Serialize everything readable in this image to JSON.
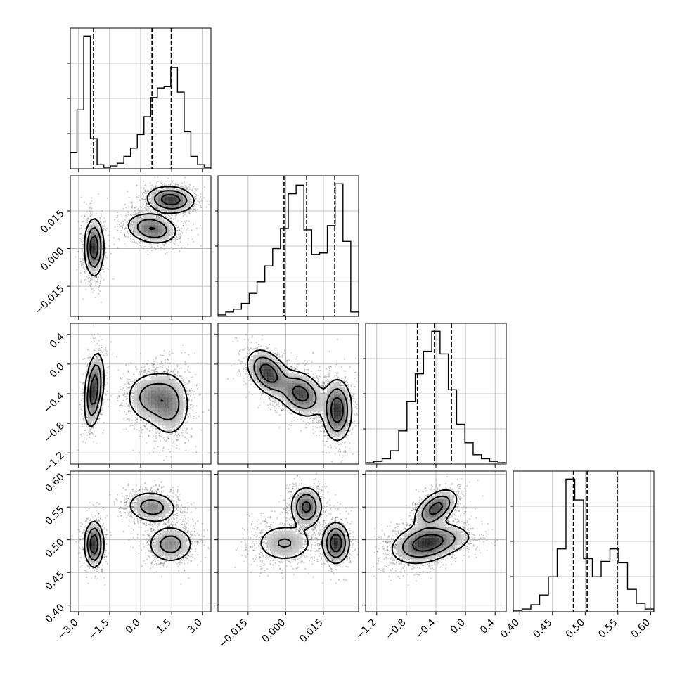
{
  "chart_data": {
    "type": "corner",
    "parameters": [
      {
        "range": [
          -3.4,
          3.4
        ],
        "ticks": [
          -3.0,
          -1.5,
          0.0,
          1.5,
          3.0
        ],
        "tick_labels": [
          "−3.0",
          "−1.5",
          "0.0",
          "1.5",
          "3.0"
        ],
        "quantiles": [
          -2.28,
          0.55,
          1.48
        ],
        "histogram": [
          0.12,
          0.43,
          0.97,
          0.22,
          0.03,
          0.01,
          0.02,
          0.04,
          0.09,
          0.15,
          0.25,
          0.38,
          0.52,
          0.59,
          0.6,
          0.74,
          0.56,
          0.27,
          0.09,
          0.03,
          0.01
        ]
      },
      {
        "range": [
          -0.027,
          0.029
        ],
        "ticks": [
          -0.015,
          0.0,
          0.015
        ],
        "tick_labels": [
          "−0.015",
          "0.000",
          "0.015"
        ],
        "quantiles": [
          -0.0007,
          0.0083,
          0.0195
        ],
        "histogram": [
          0.01,
          0.03,
          0.05,
          0.09,
          0.16,
          0.24,
          0.35,
          0.47,
          0.61,
          0.85,
          0.91,
          0.6,
          0.43,
          0.44,
          0.63,
          0.92,
          0.52,
          0.03
        ]
      },
      {
        "range": [
          -1.35,
          0.55
        ],
        "ticks": [
          -1.2,
          -0.8,
          -0.4,
          0.0,
          0.4
        ],
        "tick_labels": [
          "−1.2",
          "−0.8",
          "−0.4",
          "0.0",
          "0.4"
        ],
        "quantiles": [
          -0.65,
          -0.42,
          -0.19
        ],
        "histogram": [
          0.01,
          0.02,
          0.04,
          0.1,
          0.25,
          0.47,
          0.68,
          0.85,
          1.0,
          0.83,
          0.56,
          0.3,
          0.16,
          0.07,
          0.04,
          0.02,
          0.01
        ]
      },
      {
        "range": [
          0.39,
          0.605
        ],
        "ticks": [
          0.4,
          0.45,
          0.5,
          0.55,
          0.6
        ],
        "tick_labels": [
          "0.40",
          "0.45",
          "0.50",
          "0.55",
          "0.60"
        ],
        "quantiles": [
          0.482,
          0.503,
          0.549
        ],
        "histogram": [
          0.01,
          0.02,
          0.05,
          0.12,
          0.25,
          0.45,
          0.95,
          0.8,
          0.38,
          0.25,
          0.36,
          0.45,
          0.35,
          0.16,
          0.06,
          0.02
        ]
      }
    ],
    "pairs": [
      {
        "x": 0,
        "y": 1,
        "modes": [
          {
            "x": -2.25,
            "y": 0.0005,
            "sx": 0.22,
            "sy": 0.0055,
            "rho": 0.0,
            "w": 0.32
          },
          {
            "x": 0.55,
            "y": 0.008,
            "sx": 0.6,
            "sy": 0.003,
            "rho": -0.2,
            "w": 0.33
          },
          {
            "x": 1.45,
            "y": 0.0195,
            "sx": 0.55,
            "sy": 0.0025,
            "rho": -0.1,
            "w": 0.35
          }
        ]
      },
      {
        "x": 0,
        "y": 2,
        "modes": [
          {
            "x": -2.25,
            "y": -0.35,
            "sx": 0.22,
            "sy": 0.24,
            "rho": 0.35,
            "w": 0.32
          },
          {
            "x": 0.5,
            "y": -0.45,
            "sx": 0.6,
            "sy": 0.17,
            "rho": 0.0,
            "w": 0.34
          },
          {
            "x": 1.4,
            "y": -0.55,
            "sx": 0.5,
            "sy": 0.22,
            "rho": 0.0,
            "w": 0.34
          }
        ]
      },
      {
        "x": 1,
        "y": 2,
        "modes": [
          {
            "x": -0.007,
            "y": -0.12,
            "sx": 0.004,
            "sy": 0.15,
            "rho": -0.4,
            "w": 0.32
          },
          {
            "x": 0.006,
            "y": -0.4,
            "sx": 0.0045,
            "sy": 0.15,
            "rho": -0.3,
            "w": 0.34
          },
          {
            "x": 0.0205,
            "y": -0.62,
            "sx": 0.0028,
            "sy": 0.2,
            "rho": 0.0,
            "w": 0.34
          }
        ]
      },
      {
        "x": 0,
        "y": 3,
        "modes": [
          {
            "x": -2.25,
            "y": 0.493,
            "sx": 0.22,
            "sy": 0.017,
            "rho": 0.0,
            "w": 0.32
          },
          {
            "x": 0.55,
            "y": 0.55,
            "sx": 0.6,
            "sy": 0.012,
            "rho": -0.1,
            "w": 0.33
          },
          {
            "x": 1.45,
            "y": 0.493,
            "sx": 0.55,
            "sy": 0.014,
            "rho": 0.0,
            "w": 0.35
          }
        ]
      },
      {
        "x": 1,
        "y": 3,
        "modes": [
          {
            "x": -0.0005,
            "y": 0.495,
            "sx": 0.006,
            "sy": 0.015,
            "rho": 0.0,
            "w": 0.32
          },
          {
            "x": 0.0082,
            "y": 0.55,
            "sx": 0.003,
            "sy": 0.015,
            "rho": 0.0,
            "w": 0.33
          },
          {
            "x": 0.02,
            "y": 0.495,
            "sx": 0.0025,
            "sy": 0.015,
            "rho": 0.0,
            "w": 0.35
          }
        ]
      },
      {
        "x": 2,
        "y": 3,
        "modes": [
          {
            "x": -0.55,
            "y": 0.494,
            "sx": 0.22,
            "sy": 0.015,
            "rho": 0.3,
            "w": 0.55
          },
          {
            "x": -0.4,
            "y": 0.548,
            "sx": 0.14,
            "sy": 0.014,
            "rho": 0.5,
            "w": 0.3
          },
          {
            "x": -0.3,
            "y": 0.5,
            "sx": 0.25,
            "sy": 0.012,
            "rho": 0.2,
            "w": 0.15
          }
        ]
      }
    ],
    "contour_levels": [
      0.394,
      0.865,
      0.989
    ],
    "grid": true
  }
}
